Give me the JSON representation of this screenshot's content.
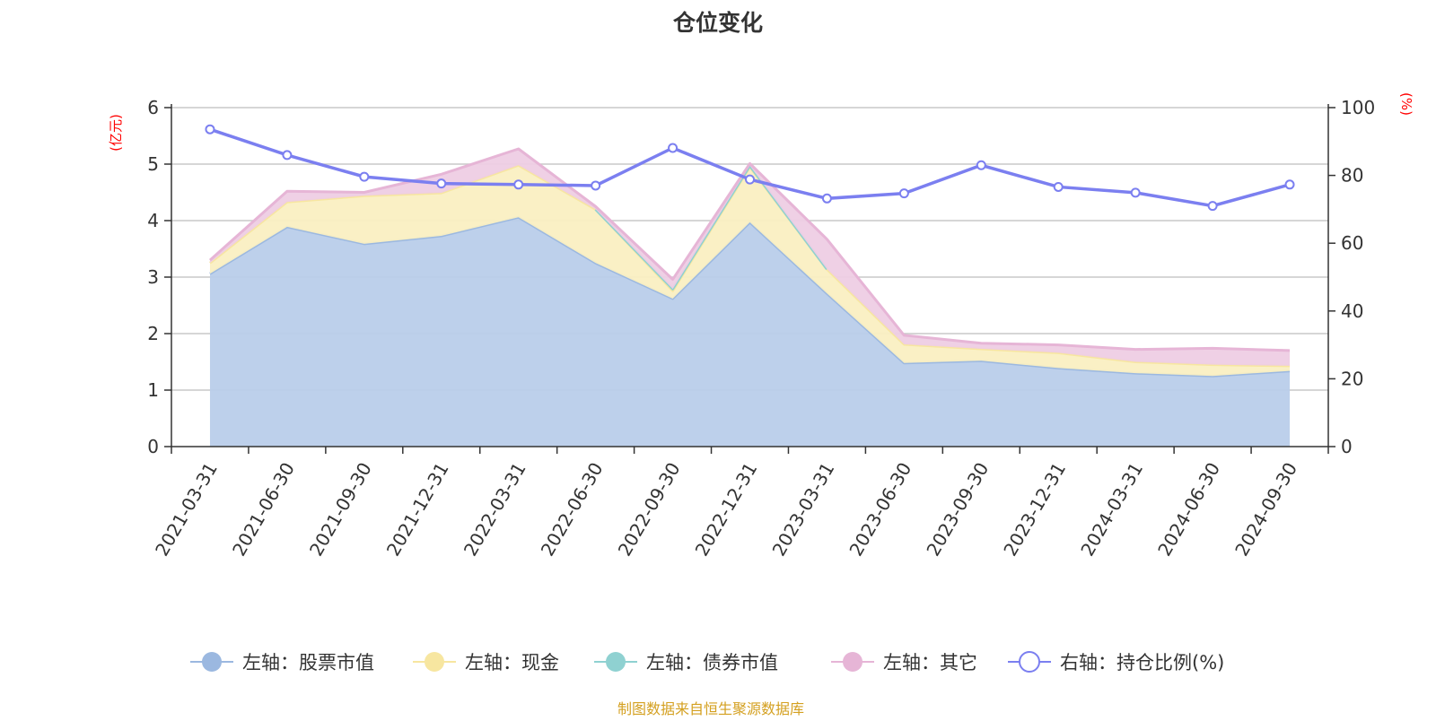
{
  "chart_data": {
    "type": "area",
    "title": "仓位变化",
    "left_axis_unit": "(亿元)",
    "right_axis_unit": "(%)",
    "left_ylim": [
      0,
      6
    ],
    "left_ticks": [
      0,
      1,
      2,
      3,
      4,
      5,
      6
    ],
    "right_ylim": [
      0,
      100
    ],
    "right_ticks": [
      0,
      20,
      40,
      60,
      80,
      100
    ],
    "grid": true,
    "legend_placement": "bottom",
    "categories": [
      "2021-03-31",
      "2021-06-30",
      "2021-09-30",
      "2021-12-31",
      "2022-03-31",
      "2022-06-30",
      "2022-09-30",
      "2022-12-31",
      "2023-03-31",
      "2023-06-30",
      "2023-09-30",
      "2023-12-31",
      "2024-03-31",
      "2024-06-30",
      "2024-09-30"
    ],
    "stacked_series": [
      {
        "name": "左轴：股票市值",
        "color": "#9bb8e0",
        "fill": "#b9cdea",
        "values": [
          3.06,
          3.89,
          3.59,
          3.73,
          4.06,
          3.25,
          2.62,
          3.97,
          2.71,
          1.48,
          1.52,
          1.39,
          1.3,
          1.25,
          1.34
        ]
      },
      {
        "name": "左轴：现金",
        "color": "#f7e6a0",
        "fill": "#faefc2",
        "values": [
          0.19,
          0.44,
          0.85,
          0.76,
          0.92,
          0.95,
          0.14,
          0.98,
          0.43,
          0.33,
          0.21,
          0.27,
          0.2,
          0.2,
          0.09
        ]
      },
      {
        "name": "左轴：债券市值",
        "color": "#8fd1d1",
        "fill": "#b5e2e2",
        "values": [
          0,
          0,
          0,
          0,
          0,
          0,
          0.03,
          0.02,
          0,
          0,
          0,
          0,
          0,
          0,
          0
        ]
      },
      {
        "name": "左轴：其它",
        "color": "#e6b5d6",
        "fill": "#eecde4",
        "values": [
          0.05,
          0.19,
          0.06,
          0.33,
          0.29,
          0.05,
          0.17,
          0.04,
          0.53,
          0.16,
          0.1,
          0.14,
          0.22,
          0.29,
          0.27
        ]
      }
    ],
    "line_series": {
      "name": "右轴：持仓比例(%)",
      "color": "#7b7ff0",
      "values": [
        93.6,
        86.0,
        79.6,
        77.6,
        77.3,
        77.0,
        88.1,
        78.8,
        73.2,
        74.7,
        83.0,
        76.6,
        74.9,
        71.0,
        77.3
      ]
    }
  },
  "footer": {
    "source": "制图数据来自恒生聚源数据库",
    "color": "#d4a020"
  }
}
